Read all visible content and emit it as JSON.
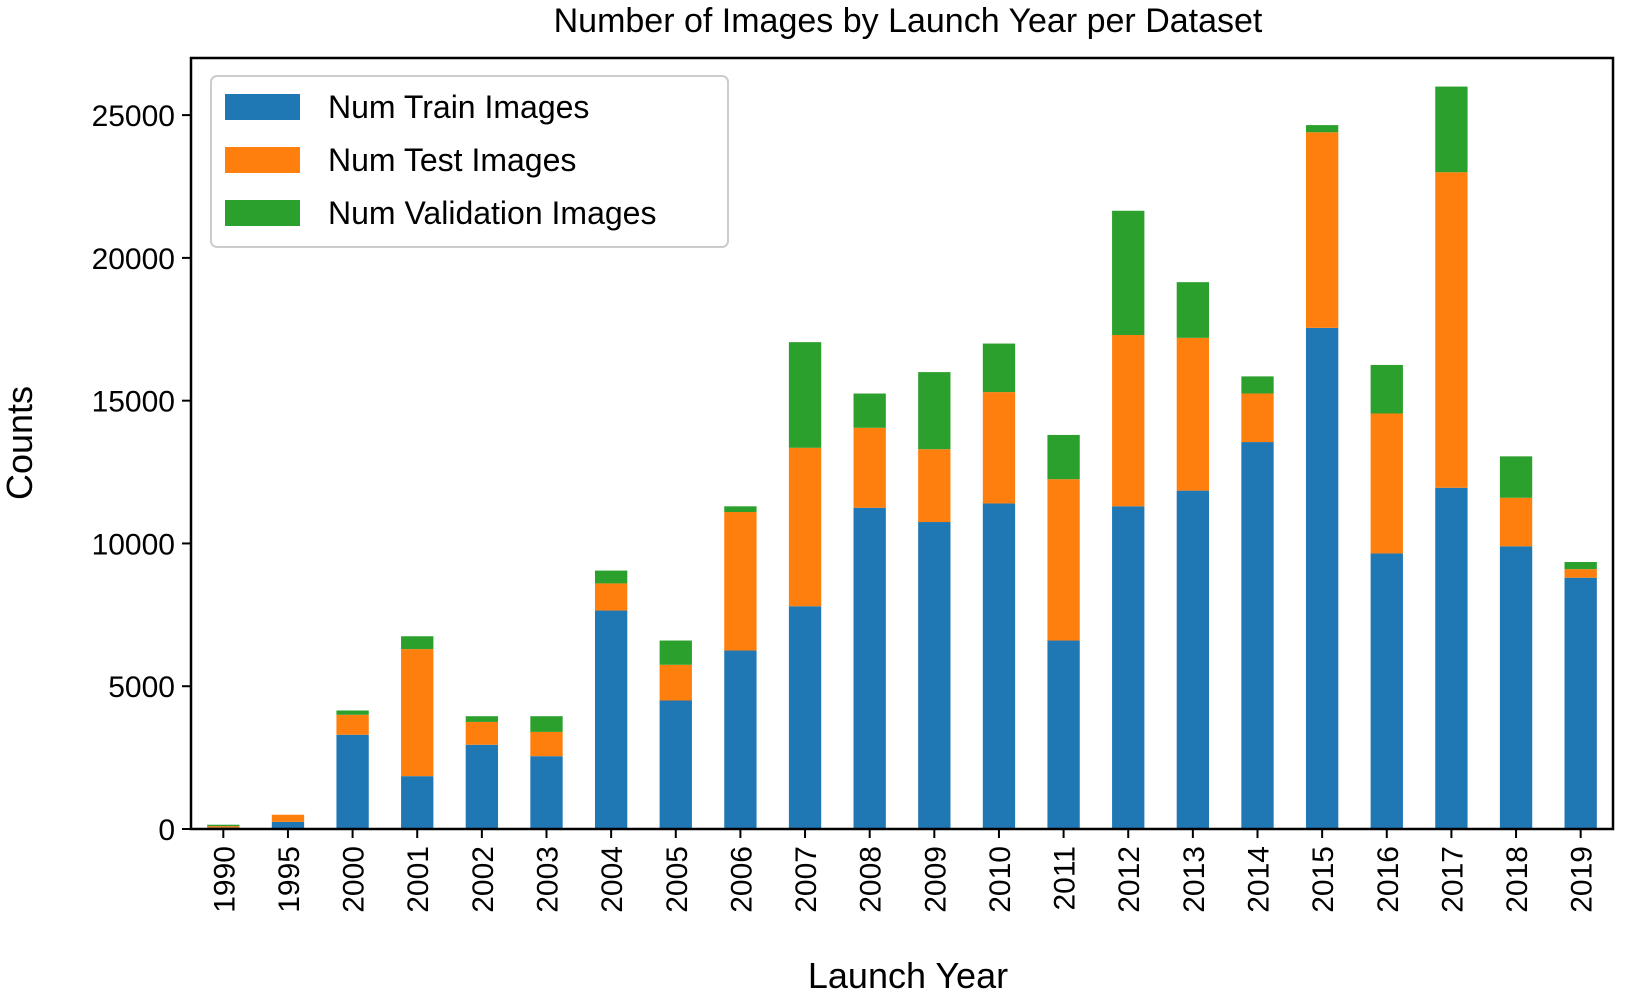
{
  "chart_data": {
    "type": "bar",
    "stacked": true,
    "title": "Number of Images by Launch Year per Dataset",
    "xlabel": "Launch Year",
    "ylabel": "Counts",
    "ylim": [
      0,
      27000
    ],
    "yticks": [
      0,
      5000,
      10000,
      15000,
      20000,
      25000
    ],
    "grid": false,
    "legend_position": "top-left",
    "categories": [
      "1990",
      "1995",
      "2000",
      "2001",
      "2002",
      "2003",
      "2004",
      "2005",
      "2006",
      "2007",
      "2008",
      "2009",
      "2010",
      "2011",
      "2012",
      "2013",
      "2014",
      "2015",
      "2016",
      "2017",
      "2018",
      "2019"
    ],
    "series": [
      {
        "name": "Num Train Images",
        "color": "#1f77b4",
        "values": [
          50,
          250,
          3300,
          1850,
          2950,
          2550,
          7650,
          4500,
          6250,
          7800,
          11250,
          10750,
          11400,
          6600,
          11300,
          11850,
          13550,
          17550,
          9650,
          11950,
          9900,
          8800
        ]
      },
      {
        "name": "Num Test Images",
        "color": "#ff7f0e",
        "values": [
          50,
          250,
          700,
          4450,
          800,
          850,
          950,
          1250,
          4850,
          5550,
          2800,
          2550,
          3900,
          5650,
          6000,
          5350,
          1700,
          6850,
          4900,
          11050,
          1700,
          300
        ]
      },
      {
        "name": "Num Validation Images",
        "color": "#2ca02c",
        "values": [
          50,
          0,
          150,
          450,
          200,
          550,
          450,
          850,
          200,
          3700,
          1200,
          2700,
          1700,
          1550,
          4350,
          1950,
          600,
          250,
          1700,
          3000,
          1450,
          250
        ]
      }
    ]
  }
}
